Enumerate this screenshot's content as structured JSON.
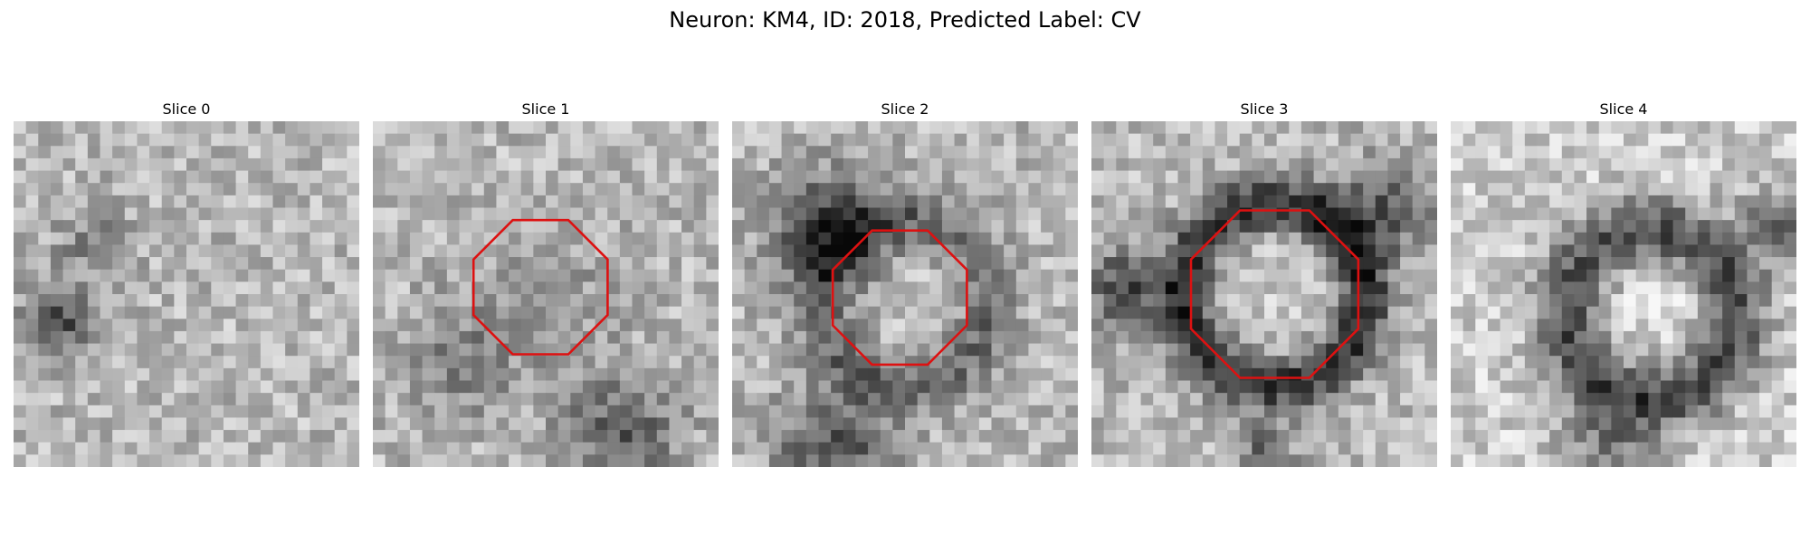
{
  "figure": {
    "title": "Neuron: KM4, ID: 2018, Predicted Label: CV"
  },
  "panels": [
    {
      "label": "Slice 0",
      "has_outline": false,
      "seed": 11,
      "pattern": "noise-dark-left"
    },
    {
      "label": "Slice 1",
      "has_outline": true,
      "seed": 23,
      "pattern": "noise-dark-bottom"
    },
    {
      "label": "Slice 2",
      "has_outline": true,
      "seed": 37,
      "pattern": "ring-dark-left"
    },
    {
      "label": "Slice 3",
      "has_outline": true,
      "seed": 51,
      "pattern": "cell-dark-ring"
    },
    {
      "label": "Slice 4",
      "has_outline": false,
      "seed": 67,
      "pattern": "cell-soft-ring"
    }
  ],
  "colors": {
    "outline": "#dd1111",
    "background": "#ffffff"
  }
}
